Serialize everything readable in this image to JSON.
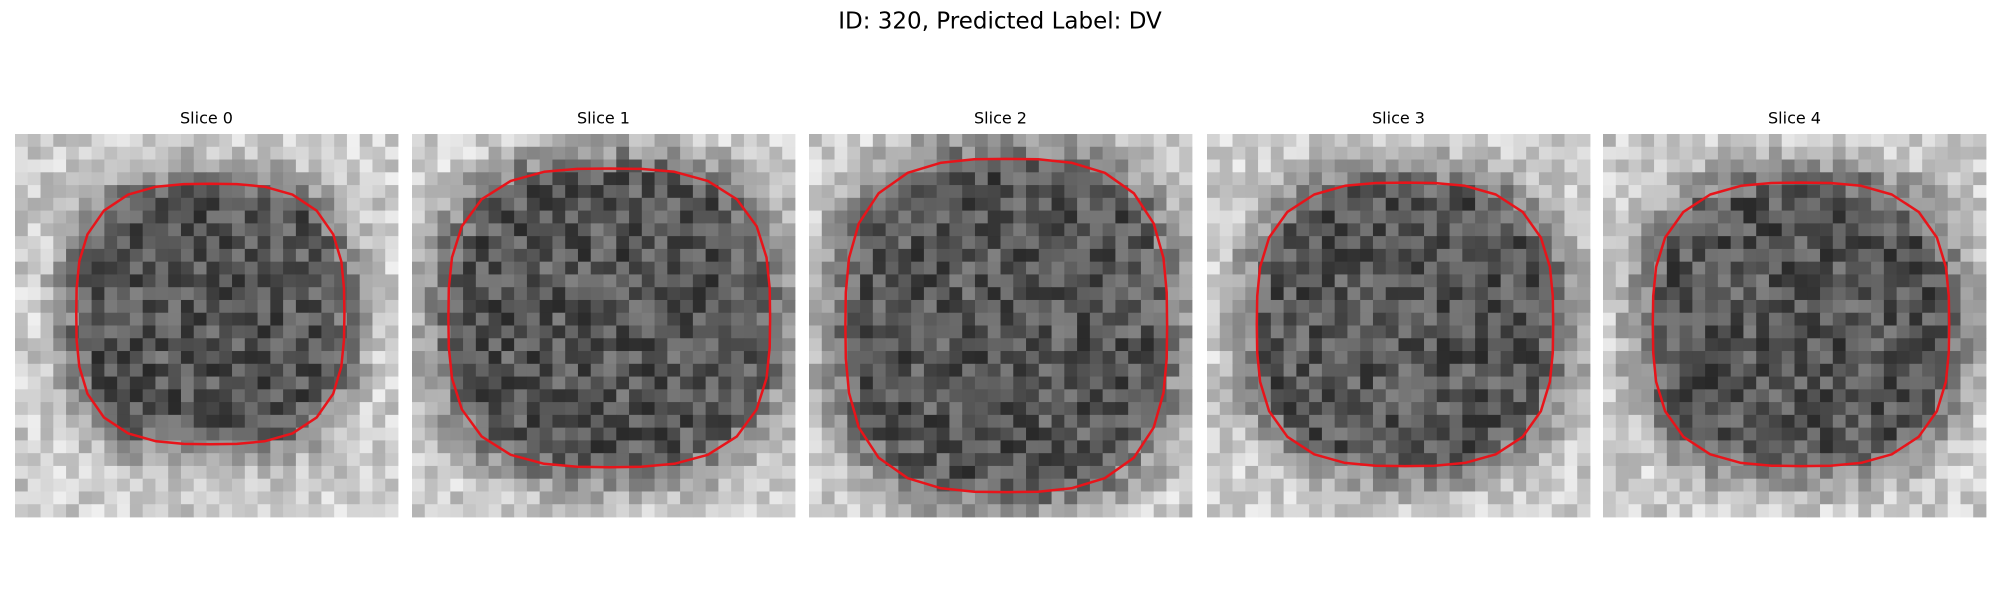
{
  "header": {
    "title": "ID: 320, Predicted Label: DV"
  },
  "panels": [
    {
      "title": "Slice 0"
    },
    {
      "title": "Slice 1"
    },
    {
      "title": "Slice 2"
    },
    {
      "title": "Slice 3"
    },
    {
      "title": "Slice 4"
    }
  ]
}
